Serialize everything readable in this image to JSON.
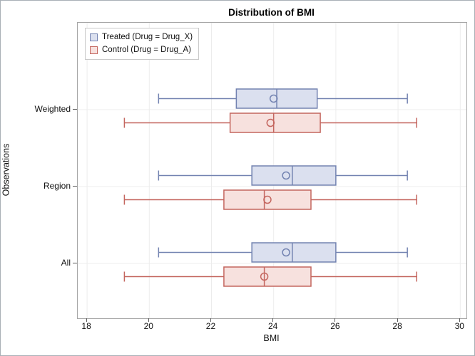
{
  "title": "Distribution of BMI",
  "chart_data": {
    "type": "boxplot",
    "orientation": "horizontal",
    "title": "Distribution of BMI",
    "xlabel": "BMI",
    "ylabel": "Observations",
    "xlim": [
      17.7,
      30.2
    ],
    "x_ticks": [
      18,
      20,
      22,
      24,
      26,
      28,
      30
    ],
    "categories": [
      "Weighted",
      "Region",
      "All"
    ],
    "grid": true,
    "legend_position": "top-left-inside",
    "colors": {
      "grid": "#ececec",
      "frame": "#a6a6a6",
      "tick": "#5a5a5a"
    },
    "series": [
      {
        "name": "Treated (Drug = Drug_X)",
        "fill": "#dbe0ef",
        "stroke": "#7383b1",
        "boxes": [
          {
            "category": "Weighted",
            "min": 20.3,
            "q1": 22.8,
            "median": 24.1,
            "q3": 25.4,
            "max": 28.3,
            "mean": 24.0
          },
          {
            "category": "Region",
            "min": 20.3,
            "q1": 23.3,
            "median": 24.6,
            "q3": 26.0,
            "max": 28.3,
            "mean": 24.4
          },
          {
            "category": "All",
            "min": 20.3,
            "q1": 23.3,
            "median": 24.6,
            "q3": 26.0,
            "max": 28.3,
            "mean": 24.4
          }
        ]
      },
      {
        "name": "Control (Drug = Drug_A)",
        "fill": "#f7e1de",
        "stroke": "#c4665f",
        "boxes": [
          {
            "category": "Weighted",
            "min": 19.2,
            "q1": 22.6,
            "median": 24.0,
            "q3": 25.5,
            "max": 28.6,
            "mean": 23.9
          },
          {
            "category": "Region",
            "min": 19.2,
            "q1": 22.4,
            "median": 23.7,
            "q3": 25.2,
            "max": 28.6,
            "mean": 23.8
          },
          {
            "category": "All",
            "min": 19.2,
            "q1": 22.4,
            "median": 23.7,
            "q3": 25.2,
            "max": 28.6,
            "mean": 23.7
          }
        ]
      }
    ]
  }
}
